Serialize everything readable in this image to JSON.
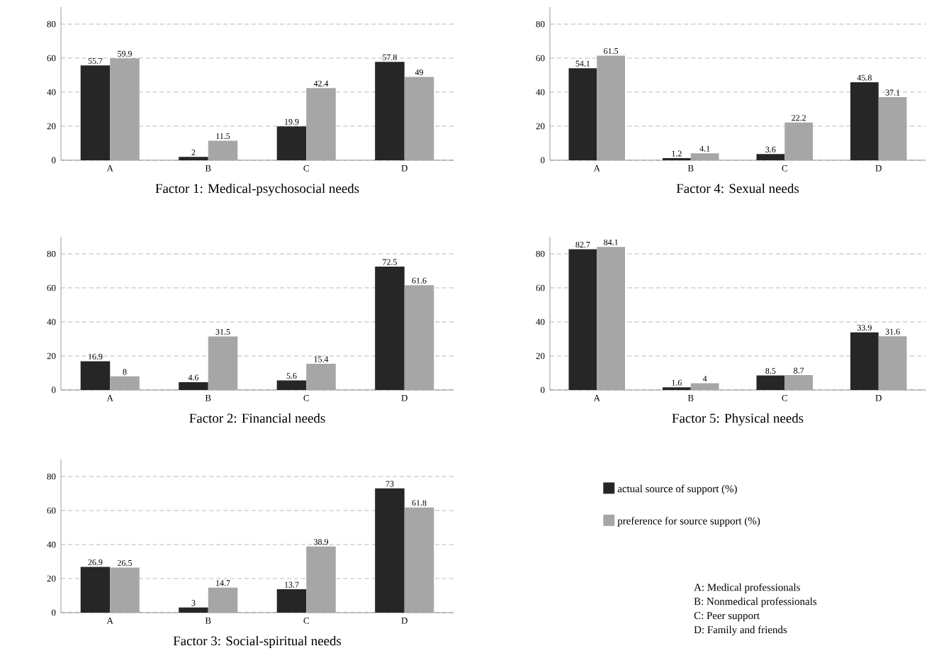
{
  "chart_data": [
    {
      "type": "bar",
      "title": "Factor 1: Medical-psychosocial needs",
      "categories": [
        "A",
        "B",
        "C",
        "D"
      ],
      "series": [
        {
          "color": "#262626",
          "values": [
            55.7,
            2,
            19.9,
            57.8
          ]
        },
        {
          "color": "#a6a6a6",
          "values": [
            59.9,
            11.5,
            42.4,
            49
          ]
        }
      ],
      "ylim": [
        0,
        90
      ],
      "yticks": [
        0,
        20,
        40,
        60,
        80
      ],
      "grid": "y",
      "data_labels": true
    },
    {
      "type": "bar",
      "title": "Factor 4: Sexual needs",
      "categories": [
        "A",
        "B",
        "C",
        "D"
      ],
      "series": [
        {
          "color": "#262626",
          "values": [
            54.1,
            1.2,
            3.6,
            45.8
          ]
        },
        {
          "color": "#a6a6a6",
          "values": [
            61.5,
            4.1,
            22.2,
            37.1
          ]
        }
      ],
      "ylim": [
        0,
        90
      ],
      "yticks": [
        0,
        20,
        40,
        60,
        80
      ],
      "grid": "y",
      "data_labels": true
    },
    {
      "type": "bar",
      "title": "Factor 2: Financial needs",
      "categories": [
        "A",
        "B",
        "C",
        "D"
      ],
      "series": [
        {
          "color": "#262626",
          "values": [
            16.9,
            4.6,
            5.6,
            72.5
          ]
        },
        {
          "color": "#a6a6a6",
          "values": [
            8,
            31.5,
            15.4,
            61.6
          ]
        }
      ],
      "ylim": [
        0,
        90
      ],
      "yticks": [
        0,
        20,
        40,
        60,
        80
      ],
      "grid": "y",
      "data_labels": true
    },
    {
      "type": "bar",
      "title": "Factor 5: Physical needs",
      "categories": [
        "A",
        "B",
        "C",
        "D"
      ],
      "series": [
        {
          "name": "actual source of support (%)",
          "color": "#262626",
          "values": [
            82.7,
            1.6,
            8.5,
            33.9
          ]
        },
        {
          "name": "preference for source support (%)",
          "color": "#a6a6a6",
          "values": [
            84.1,
            4,
            8.7,
            31.6
          ]
        }
      ],
      "ylim": [
        0,
        90
      ],
      "yticks": [
        0,
        20,
        40,
        60,
        80
      ],
      "grid": "y",
      "data_labels": true,
      "legend": "bottom",
      "annotations": [
        "A: Medical professionals",
        "B: Nonmedical professionals",
        "C: Peer support",
        "D: Family and friends"
      ]
    },
    {
      "type": "bar",
      "title": "Factor 3: Social-spiritual needs",
      "categories": [
        "A",
        "B",
        "C",
        "D"
      ],
      "series": [
        {
          "color": "#262626",
          "values": [
            26.9,
            3,
            13.7,
            73
          ]
        },
        {
          "color": "#a6a6a6",
          "values": [
            26.5,
            14.7,
            38.9,
            61.8
          ]
        }
      ],
      "ylim": [
        0,
        90
      ],
      "yticks": [
        0,
        20,
        40,
        60,
        80
      ],
      "grid": "y",
      "data_labels": true
    }
  ]
}
